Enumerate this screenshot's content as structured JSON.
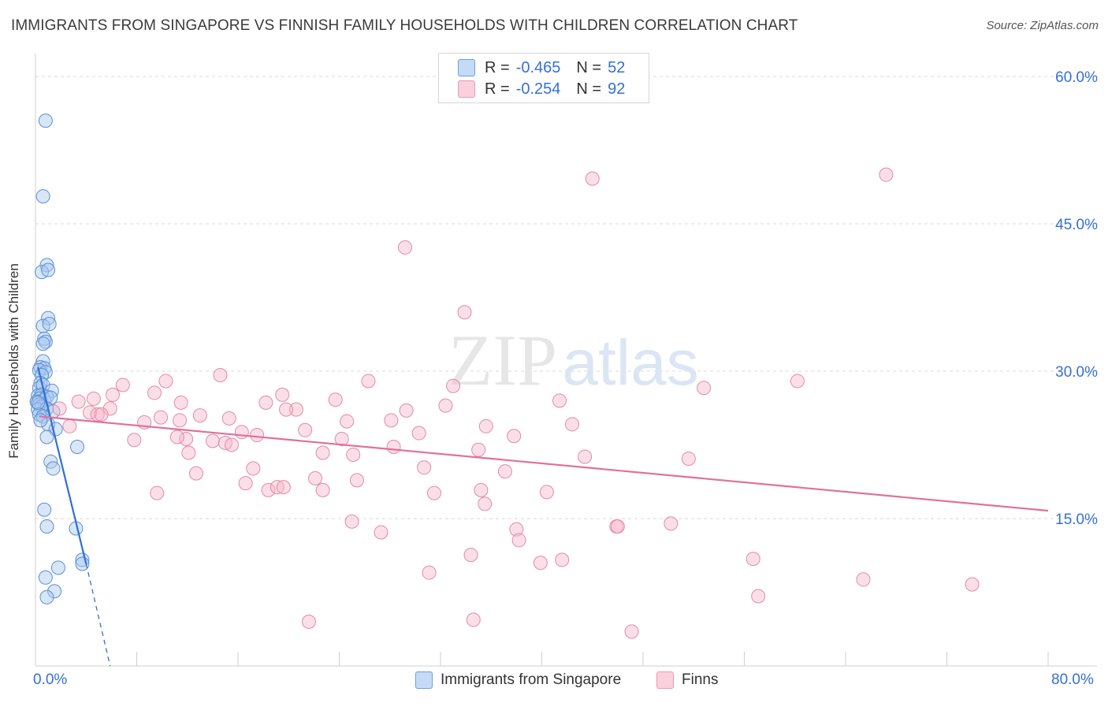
{
  "title": "IMMIGRANTS FROM SINGAPORE VS FINNISH FAMILY HOUSEHOLDS WITH CHILDREN CORRELATION CHART",
  "source": "Source: ZipAtlas.com",
  "watermark": {
    "zip": "ZIP",
    "atlas": "atlas"
  },
  "legend": {
    "r_label": "R =",
    "n_label": "N =",
    "series": [
      {
        "name": "Immigrants from Singapore",
        "r": "-0.465",
        "n": "52",
        "color": "#a8c8f0",
        "edge": "#5b8fd6"
      },
      {
        "name": "Finns",
        "r": "-0.254",
        "n": "92",
        "color": "#f7b8cb",
        "edge": "#e48aa6"
      }
    ]
  },
  "chart_data": {
    "type": "scatter",
    "title": "IMMIGRANTS FROM SINGAPORE VS FINNISH FAMILY HOUSEHOLDS WITH CHILDREN CORRELATION CHART",
    "xlabel": "",
    "ylabel": "Family Households with Children",
    "xlim": [
      0,
      80
    ],
    "ylim": [
      0,
      60
    ],
    "x_tick_labels": [
      "0.0%",
      "80.0%"
    ],
    "y_ticks": [
      15,
      30,
      45,
      60
    ],
    "y_tick_labels": [
      "15.0%",
      "30.0%",
      "45.0%",
      "60.0%"
    ],
    "grid": true,
    "series": [
      {
        "name": "Immigrants from Singapore",
        "color": "#a8c8f0",
        "edge": "#5b8fd6",
        "trend": {
          "x0": 0.2,
          "y0": 30.4,
          "x1": 4.0,
          "y1": 10.4,
          "dash_to_x": 5.9,
          "dash_to_y": 0.0,
          "color": "#2f6fd4"
        },
        "points": [
          [
            0.8,
            55.5
          ],
          [
            0.6,
            47.8
          ],
          [
            0.9,
            40.8
          ],
          [
            0.5,
            40.1
          ],
          [
            1.0,
            40.3
          ],
          [
            1.0,
            35.4
          ],
          [
            0.6,
            34.6
          ],
          [
            1.1,
            34.8
          ],
          [
            0.7,
            33.3
          ],
          [
            0.8,
            33.0
          ],
          [
            0.6,
            32.8
          ],
          [
            0.6,
            31.0
          ],
          [
            0.4,
            30.4
          ],
          [
            0.7,
            30.3
          ],
          [
            0.3,
            30.1
          ],
          [
            0.8,
            29.9
          ],
          [
            0.5,
            29.6
          ],
          [
            0.4,
            28.8
          ],
          [
            0.3,
            28.3
          ],
          [
            0.6,
            28.6
          ],
          [
            1.3,
            28.0
          ],
          [
            0.2,
            27.5
          ],
          [
            0.5,
            27.6
          ],
          [
            0.3,
            27.2
          ],
          [
            0.7,
            27.1
          ],
          [
            0.9,
            27.4
          ],
          [
            1.2,
            27.3
          ],
          [
            0.1,
            26.9
          ],
          [
            0.3,
            26.6
          ],
          [
            0.5,
            26.4
          ],
          [
            0.2,
            26.1
          ],
          [
            0.9,
            26.2
          ],
          [
            1.4,
            25.9
          ],
          [
            0.3,
            25.6
          ],
          [
            0.6,
            25.4
          ],
          [
            1.0,
            24.6
          ],
          [
            0.2,
            26.8
          ],
          [
            1.6,
            24.1
          ],
          [
            0.9,
            23.3
          ],
          [
            3.3,
            22.3
          ],
          [
            1.2,
            20.8
          ],
          [
            1.4,
            20.1
          ],
          [
            0.7,
            15.9
          ],
          [
            0.9,
            14.2
          ],
          [
            3.2,
            14.0
          ],
          [
            3.7,
            10.8
          ],
          [
            3.7,
            10.4
          ],
          [
            1.8,
            10.0
          ],
          [
            0.8,
            9.0
          ],
          [
            1.5,
            7.6
          ],
          [
            0.9,
            7.0
          ],
          [
            0.4,
            25.0
          ]
        ]
      },
      {
        "name": "Finns",
        "color": "#f7b8cb",
        "edge": "#e48aa6",
        "trend": {
          "x0": 0.3,
          "y0": 25.4,
          "x1": 80.0,
          "y1": 15.8,
          "color": "#e0709a"
        },
        "points": [
          [
            44.0,
            49.6
          ],
          [
            67.2,
            50.0
          ],
          [
            29.2,
            42.6
          ],
          [
            33.9,
            36.0
          ],
          [
            14.6,
            29.6
          ],
          [
            10.3,
            29.0
          ],
          [
            26.3,
            29.0
          ],
          [
            52.8,
            28.3
          ],
          [
            60.2,
            29.0
          ],
          [
            6.9,
            28.6
          ],
          [
            33.0,
            28.5
          ],
          [
            9.4,
            27.8
          ],
          [
            19.5,
            27.6
          ],
          [
            4.6,
            27.2
          ],
          [
            3.4,
            26.9
          ],
          [
            11.5,
            26.8
          ],
          [
            18.2,
            26.8
          ],
          [
            23.7,
            27.1
          ],
          [
            41.4,
            27.0
          ],
          [
            32.4,
            26.5
          ],
          [
            5.9,
            26.2
          ],
          [
            20.6,
            26.1
          ],
          [
            29.3,
            26.0
          ],
          [
            1.9,
            26.2
          ],
          [
            4.3,
            25.8
          ],
          [
            4.9,
            25.6
          ],
          [
            5.2,
            25.6
          ],
          [
            9.9,
            25.3
          ],
          [
            11.4,
            25.0
          ],
          [
            13.0,
            25.5
          ],
          [
            15.3,
            25.2
          ],
          [
            19.8,
            26.1
          ],
          [
            24.6,
            24.9
          ],
          [
            28.1,
            25.0
          ],
          [
            35.6,
            24.4
          ],
          [
            42.4,
            24.6
          ],
          [
            8.6,
            24.8
          ],
          [
            2.7,
            24.4
          ],
          [
            21.3,
            24.0
          ],
          [
            16.3,
            23.8
          ],
          [
            17.5,
            23.5
          ],
          [
            30.3,
            23.7
          ],
          [
            37.8,
            23.4
          ],
          [
            7.8,
            23.0
          ],
          [
            11.9,
            23.1
          ],
          [
            14.0,
            22.9
          ],
          [
            15.0,
            22.7
          ],
          [
            15.5,
            22.5
          ],
          [
            24.2,
            23.1
          ],
          [
            25.1,
            21.5
          ],
          [
            28.3,
            22.3
          ],
          [
            22.7,
            21.7
          ],
          [
            35.0,
            22.0
          ],
          [
            12.1,
            21.7
          ],
          [
            43.4,
            21.3
          ],
          [
            51.6,
            21.1
          ],
          [
            17.2,
            20.1
          ],
          [
            37.1,
            19.8
          ],
          [
            12.7,
            19.6
          ],
          [
            22.1,
            19.1
          ],
          [
            25.4,
            18.9
          ],
          [
            16.6,
            18.6
          ],
          [
            18.4,
            17.9
          ],
          [
            19.1,
            18.2
          ],
          [
            19.6,
            18.2
          ],
          [
            22.7,
            17.9
          ],
          [
            40.4,
            17.7
          ],
          [
            9.6,
            17.6
          ],
          [
            31.5,
            17.6
          ],
          [
            35.5,
            16.5
          ],
          [
            25.0,
            14.7
          ],
          [
            27.3,
            13.6
          ],
          [
            38.0,
            13.9
          ],
          [
            38.2,
            12.8
          ],
          [
            45.9,
            14.2
          ],
          [
            50.2,
            14.5
          ],
          [
            34.4,
            11.3
          ],
          [
            39.9,
            10.5
          ],
          [
            41.6,
            10.8
          ],
          [
            31.1,
            9.5
          ],
          [
            56.7,
            10.9
          ],
          [
            57.1,
            7.1
          ],
          [
            65.4,
            8.8
          ],
          [
            74.0,
            8.3
          ],
          [
            21.6,
            4.5
          ],
          [
            34.6,
            4.7
          ],
          [
            47.1,
            3.5
          ],
          [
            46.0,
            14.2
          ],
          [
            35.2,
            17.9
          ],
          [
            30.7,
            20.2
          ],
          [
            11.2,
            23.3
          ],
          [
            6.1,
            27.6
          ]
        ]
      }
    ]
  }
}
